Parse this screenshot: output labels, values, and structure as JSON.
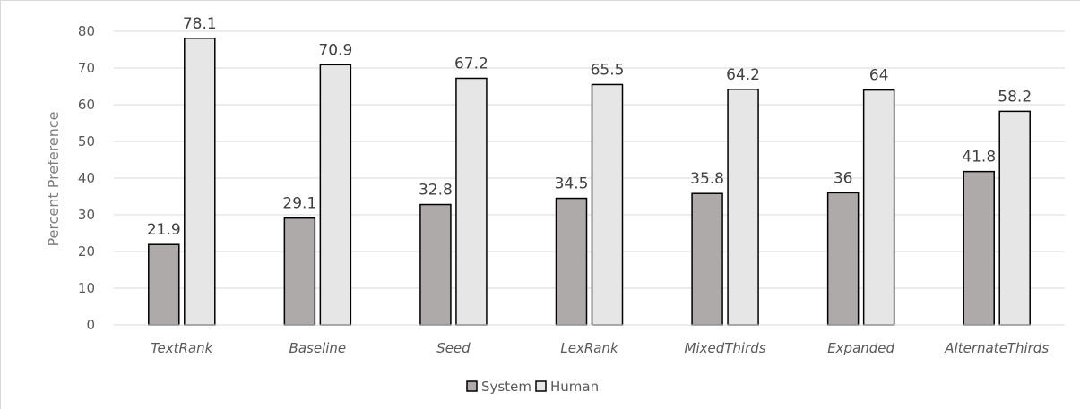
{
  "chart_data": {
    "type": "bar",
    "title": "",
    "xlabel": "",
    "ylabel": "Percent Preference",
    "ylim": [
      0,
      80
    ],
    "yticks": [
      0,
      10,
      20,
      30,
      40,
      50,
      60,
      70,
      80
    ],
    "grid": true,
    "legend_position": "bottom",
    "categories": [
      "TextRank",
      "Baseline",
      "Seed",
      "LexRank",
      "MixedThirds",
      "Expanded",
      "AlternateThirds"
    ],
    "series": [
      {
        "name": "System",
        "color": "#aeaaaa",
        "values": [
          21.9,
          29.1,
          32.8,
          34.5,
          35.8,
          36,
          41.8
        ],
        "labels": [
          "21.9",
          "29.1",
          "32.8",
          "34.5",
          "35.8",
          "36",
          "41.8"
        ]
      },
      {
        "name": "Human",
        "color": "#e7e6e6",
        "values": [
          78.1,
          70.9,
          67.2,
          65.5,
          64.2,
          64,
          58.2
        ],
        "labels": [
          "78.1",
          "70.9",
          "67.2",
          "65.5",
          "64.2",
          "64",
          "58.2"
        ]
      }
    ]
  }
}
